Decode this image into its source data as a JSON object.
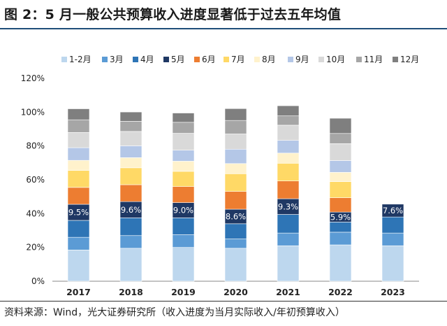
{
  "title": "图 2：5 月一般公共预算收入进度显著低于过去五年均值",
  "source": "资料来源：Wind，光大证券研究所（收入进度为当月实际收入/年初预算收入）",
  "colors": {
    "1-2月": "#bdd7ee",
    "3月": "#5b9bd5",
    "4月": "#2e75b6",
    "5月": "#1f3864",
    "6月": "#ed7d31",
    "7月": "#ffd966",
    "8月": "#fff2cc",
    "9月": "#b4c7e7",
    "10月": "#d9d9d9",
    "11月": "#a6a6a6",
    "12月": "#7f7f7f"
  },
  "chart_data": {
    "type": "bar",
    "stacked": true,
    "categories": [
      "2017",
      "2018",
      "2019",
      "2020",
      "2021",
      "2022",
      "2023"
    ],
    "ylim": [
      0,
      120
    ],
    "yticks": [
      "0%",
      "20%",
      "40%",
      "60%",
      "80%",
      "100%",
      "120%"
    ],
    "legend_position": "top",
    "series": [
      {
        "name": "1-2月",
        "values": [
          18.5,
          19.5,
          20,
          19.5,
          21,
          21.5,
          21
        ]
      },
      {
        "name": "3月",
        "values": [
          7.5,
          7.5,
          7.5,
          5.5,
          7.5,
          7.5,
          7.5
        ]
      },
      {
        "name": "4月",
        "values": [
          10,
          10.5,
          10,
          9,
          11,
          6,
          9.5
        ]
      },
      {
        "name": "5月",
        "values": [
          9.5,
          9.6,
          9,
          8.6,
          9.3,
          5.9,
          7.6
        ]
      },
      {
        "name": "6月",
        "values": [
          10,
          10,
          9.5,
          10.5,
          10.5,
          8.5,
          0
        ]
      },
      {
        "name": "7月",
        "values": [
          10,
          10,
          9,
          10.5,
          10.5,
          9.5,
          0
        ]
      },
      {
        "name": "8月",
        "values": [
          6,
          6,
          6,
          6,
          6,
          5.5,
          0
        ]
      },
      {
        "name": "9月",
        "values": [
          7.5,
          7,
          6.5,
          8.5,
          7.5,
          7,
          0
        ]
      },
      {
        "name": "10月",
        "values": [
          9,
          8.5,
          10,
          9,
          9,
          10,
          0
        ]
      },
      {
        "name": "11月",
        "values": [
          7.5,
          6,
          6.5,
          8,
          5.5,
          6,
          0
        ]
      },
      {
        "name": "12月",
        "values": [
          6.5,
          5.5,
          5.5,
          7,
          6,
          9,
          0
        ]
      }
    ],
    "data_labels": [
      "9.5%",
      "9.6%",
      "9.0%",
      "8.6%",
      "9.3%",
      "5.9%",
      "7.6%"
    ],
    "data_label_series": "5月"
  }
}
